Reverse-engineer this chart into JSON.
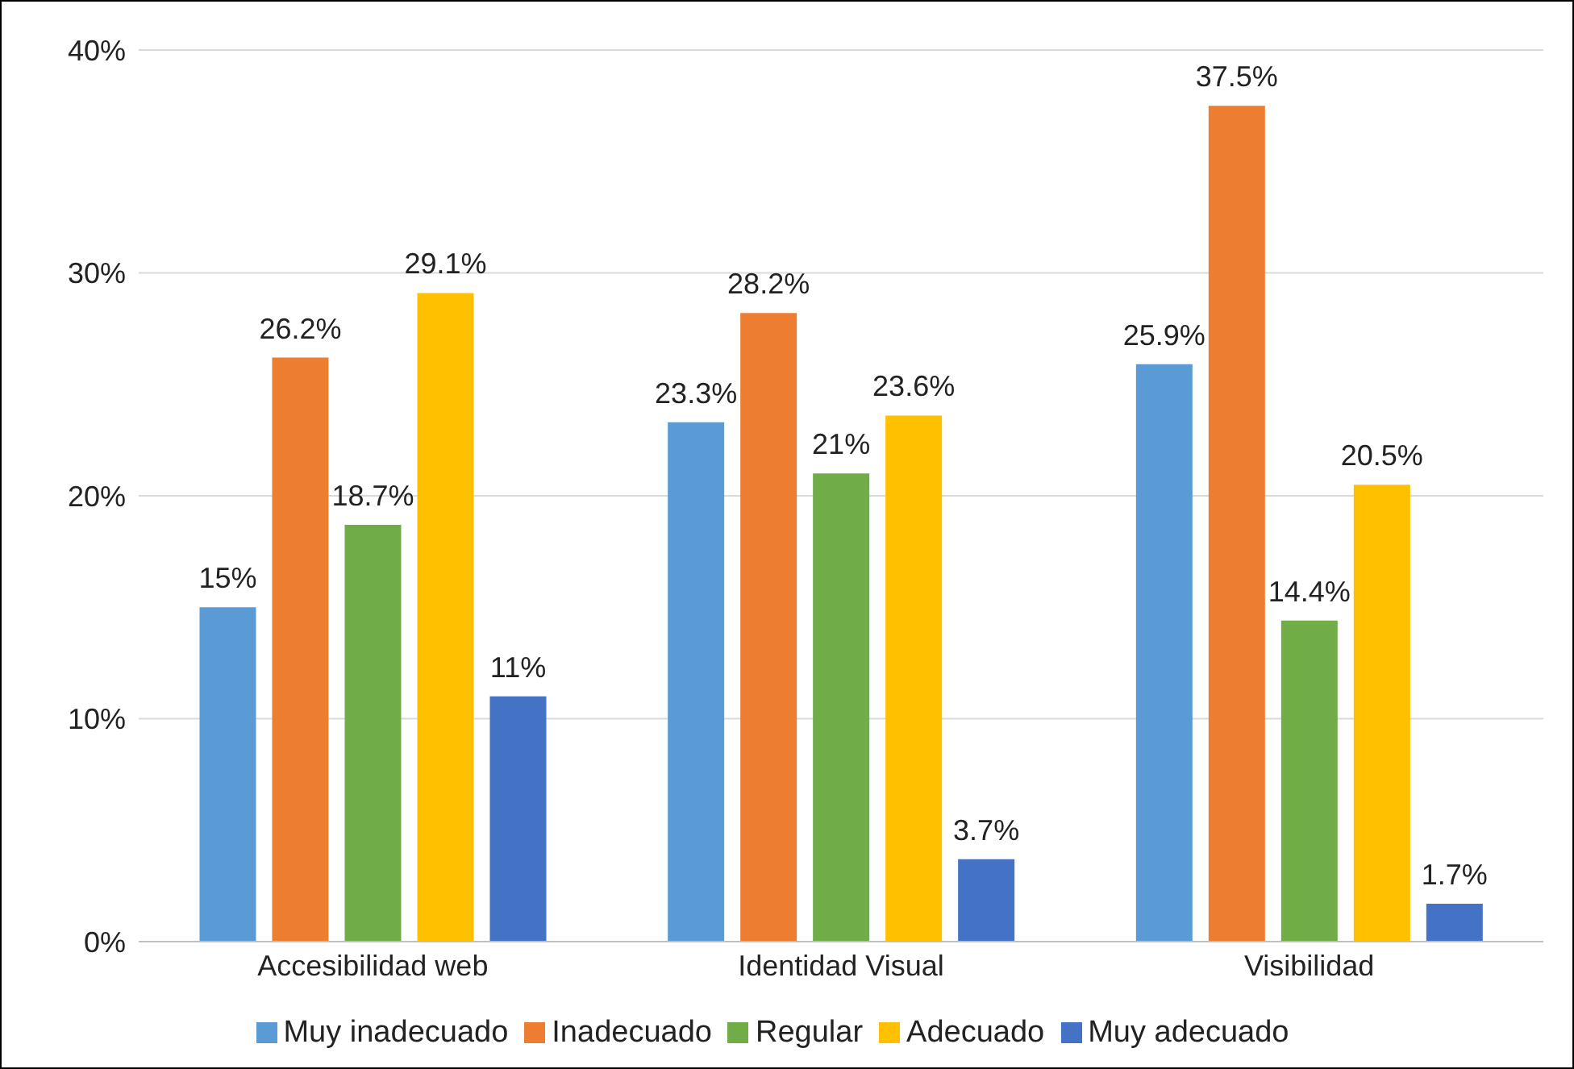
{
  "chart_data": {
    "type": "bar",
    "categories": [
      "Accesibilidad web",
      "Identidad Visual",
      "Visibilidad"
    ],
    "series": [
      {
        "name": "Muy inadecuado",
        "color": "#5b9bd5",
        "values": [
          15,
          23.3,
          25.9
        ],
        "value_labels": [
          "15%",
          "23.3%",
          "25.9%"
        ]
      },
      {
        "name": "Inadecuado",
        "color": "#ed7d31",
        "values": [
          26.2,
          28.2,
          37.5
        ],
        "value_labels": [
          "26.2%",
          "28.2%",
          "37.5%"
        ]
      },
      {
        "name": "Regular",
        "color": "#70ad47",
        "values": [
          18.7,
          21,
          14.4
        ],
        "value_labels": [
          "18.7%",
          "21%",
          "14.4%"
        ]
      },
      {
        "name": "Adecuado",
        "color": "#ffc000",
        "values": [
          29.1,
          23.6,
          20.5
        ],
        "value_labels": [
          "29.1%",
          "23.6%",
          "20.5%"
        ]
      },
      {
        "name": "Muy adecuado",
        "color": "#4472c4",
        "values": [
          11,
          3.7,
          1.7
        ],
        "value_labels": [
          "11%",
          "3.7%",
          "1.7%"
        ]
      }
    ],
    "ylim": [
      0,
      40
    ],
    "yticks": [
      {
        "value": 0,
        "label": "0%"
      },
      {
        "value": 10,
        "label": "10%"
      },
      {
        "value": 20,
        "label": "20%"
      },
      {
        "value": 30,
        "label": "30%"
      },
      {
        "value": 40,
        "label": "40%"
      }
    ],
    "grid": "y",
    "legend": "bottom"
  }
}
